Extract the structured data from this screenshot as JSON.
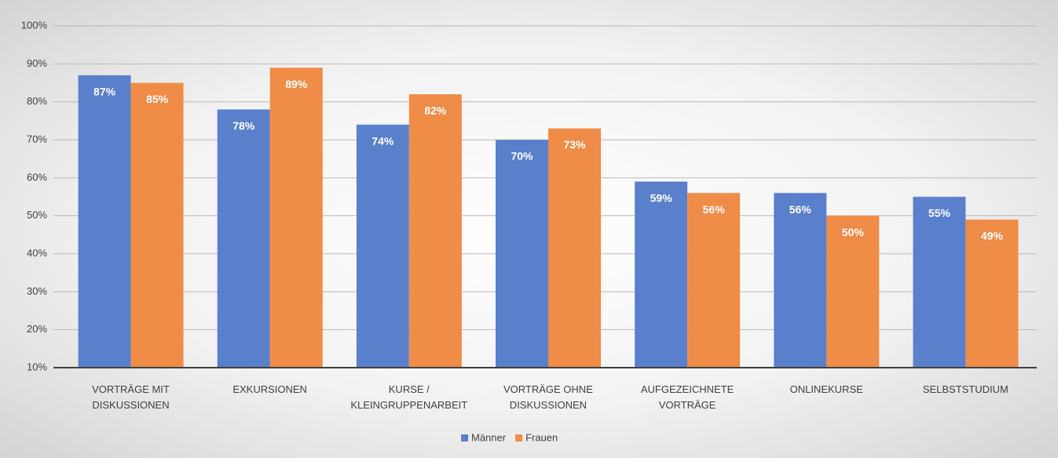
{
  "chart_data": {
    "type": "bar",
    "categories": [
      "VORTRÄGE MIT\nDISKUSSIONEN",
      "EXKURSIONEN",
      "KURSE /\nKLEINGRUPPENARBEIT",
      "VORTRÄGE OHNE\nDISKUSSIONEN",
      "AUFGEZEICHNETE\nVORTRÄGE",
      "ONLINEKURSE",
      "SELBSTSTUDIUM"
    ],
    "series": [
      {
        "name": "Männer",
        "color": "#5a80cc",
        "values": [
          87,
          78,
          74,
          70,
          59,
          56,
          55
        ],
        "value_labels": [
          "87%",
          "78%",
          "74%",
          "70%",
          "59%",
          "56%",
          "55%"
        ]
      },
      {
        "name": "Frauen",
        "color": "#ef8c48",
        "values": [
          85,
          89,
          82,
          73,
          56,
          50,
          49
        ],
        "value_labels": [
          "85%",
          "89%",
          "82%",
          "73%",
          "56%",
          "50%",
          "49%"
        ]
      }
    ],
    "ylim": [
      10,
      100
    ],
    "yticks": [
      {
        "value": 10,
        "label": "10%"
      },
      {
        "value": 20,
        "label": "20%"
      },
      {
        "value": 30,
        "label": "30%"
      },
      {
        "value": 40,
        "label": "40%"
      },
      {
        "value": 50,
        "label": "50%"
      },
      {
        "value": 60,
        "label": "60%"
      },
      {
        "value": 70,
        "label": "70%"
      },
      {
        "value": 80,
        "label": "80%"
      },
      {
        "value": 90,
        "label": "90%"
      },
      {
        "value": 100,
        "label": "100%"
      }
    ],
    "grid": true,
    "legend": "bottom"
  }
}
